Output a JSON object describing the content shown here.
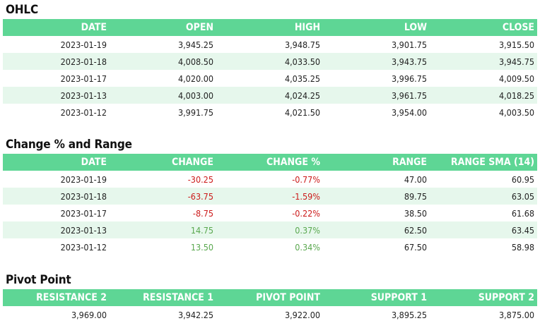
{
  "ohlc": {
    "title": "OHLC",
    "headers": [
      "DATE",
      "OPEN",
      "HIGH",
      "LOW",
      "CLOSE"
    ],
    "rows": [
      [
        "2023-01-19",
        "3,945.25",
        "3,948.75",
        "3,901.75",
        "3,915.50"
      ],
      [
        "2023-01-18",
        "4,008.50",
        "4,033.50",
        "3,943.75",
        "3,945.75"
      ],
      [
        "2023-01-17",
        "4,020.00",
        "4,035.25",
        "3,996.75",
        "4,009.50"
      ],
      [
        "2023-01-13",
        "4,003.00",
        "4,024.25",
        "3,961.75",
        "4,018.25"
      ],
      [
        "2023-01-12",
        "3,991.75",
        "4,021.50",
        "3,954.00",
        "4,003.50"
      ]
    ]
  },
  "change": {
    "title": "Change % and Range",
    "headers": [
      "DATE",
      "CHANGE",
      "CHANGE %",
      "RANGE",
      "RANGE SMA (14)"
    ],
    "rows": [
      [
        "2023-01-19",
        "-30.25",
        "-0.77%",
        "47.00",
        "60.95"
      ],
      [
        "2023-01-18",
        "-63.75",
        "-1.59%",
        "89.75",
        "63.05"
      ],
      [
        "2023-01-17",
        "-8.75",
        "-0.22%",
        "38.50",
        "61.68"
      ],
      [
        "2023-01-13",
        "14.75",
        "0.37%",
        "62.50",
        "63.45"
      ],
      [
        "2023-01-12",
        "13.50",
        "0.34%",
        "67.50",
        "58.98"
      ]
    ]
  },
  "pivot": {
    "title": "Pivot Point",
    "headers": [
      "RESISTANCE 2",
      "RESISTANCE 1",
      "PIVOT POINT",
      "SUPPORT 1",
      "SUPPORT 2"
    ],
    "rows": [
      [
        "3,969.00",
        "3,942.25",
        "3,922.00",
        "3,895.25",
        "3,875.00"
      ]
    ]
  },
  "colors": {
    "header_bg": "#5ed695",
    "alt_row_bg": "#e6f7ec",
    "negative": "#cc1a1a",
    "positive": "#5aa84f"
  }
}
